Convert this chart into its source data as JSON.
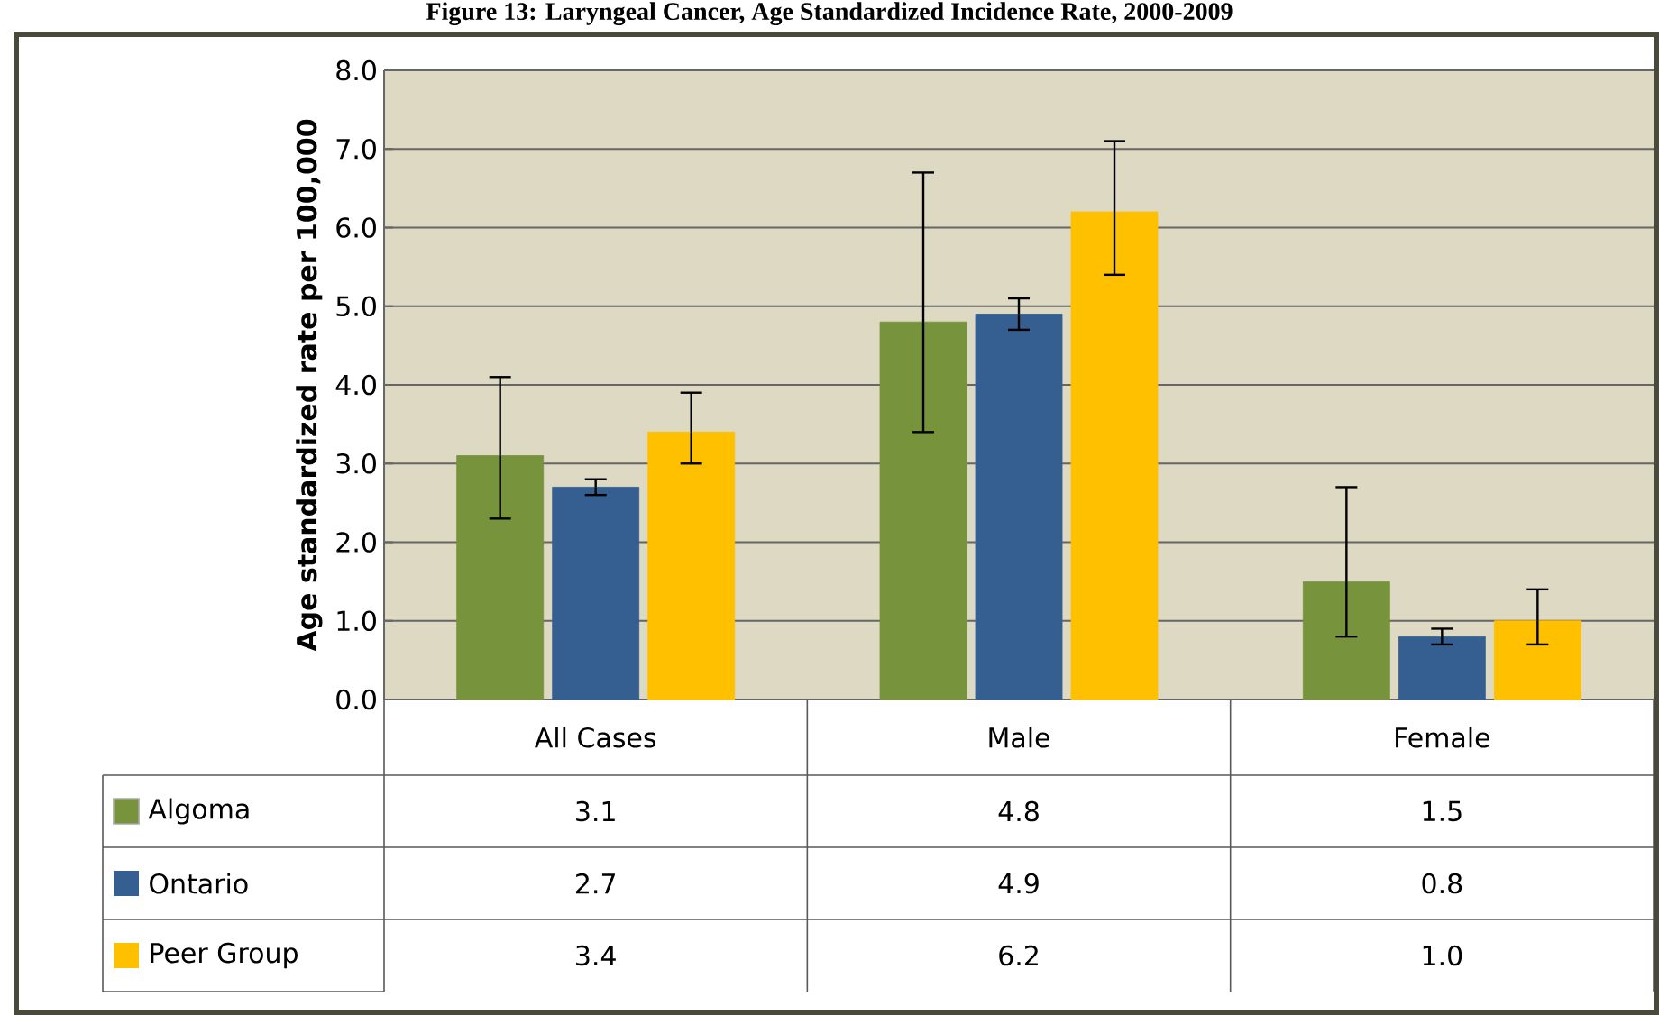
{
  "chart_data": {
    "type": "bar",
    "title": "Figure 13: Laryngeal Cancer, Age Standardized Incidence Rate, 2000-2009",
    "ylabel": "Age standardized rate per 100,000",
    "categories": [
      "All Cases",
      "Male",
      "Female"
    ],
    "series": [
      {
        "name": "Algoma",
        "color": "#77933c",
        "values": [
          3.1,
          4.8,
          1.5
        ],
        "errors": [
          [
            2.3,
            4.1
          ],
          [
            3.4,
            6.7
          ],
          [
            0.8,
            2.7
          ]
        ],
        "value_labels": [
          "3.1",
          "4.8",
          "1.5"
        ]
      },
      {
        "name": "Ontario",
        "color": "#355f91",
        "values": [
          2.7,
          4.9,
          0.8
        ],
        "errors": [
          [
            2.6,
            2.8
          ],
          [
            4.7,
            5.1
          ],
          [
            0.7,
            0.9
          ]
        ],
        "value_labels": [
          "2.7",
          "4.9",
          "0.8"
        ]
      },
      {
        "name": "Peer Group",
        "color": "#ffc000",
        "values": [
          3.4,
          6.2,
          1.0
        ],
        "errors": [
          [
            3.0,
            3.9
          ],
          [
            5.4,
            7.1
          ],
          [
            0.7,
            1.4
          ]
        ],
        "value_labels": [
          "3.4",
          "6.2",
          "1.0"
        ]
      }
    ],
    "ylim": [
      0,
      8
    ],
    "yticks": [
      {
        "value": 0,
        "label": "0.0"
      },
      {
        "value": 1,
        "label": "1.0"
      },
      {
        "value": 2,
        "label": "2.0"
      },
      {
        "value": 3,
        "label": "3.0"
      },
      {
        "value": 4,
        "label": "4.0"
      },
      {
        "value": 5,
        "label": "5.0"
      },
      {
        "value": 6,
        "label": "6.0"
      },
      {
        "value": 7,
        "label": "7.0"
      },
      {
        "value": 8,
        "label": "8.0"
      }
    ],
    "grid": "y",
    "legend": "bottom"
  }
}
